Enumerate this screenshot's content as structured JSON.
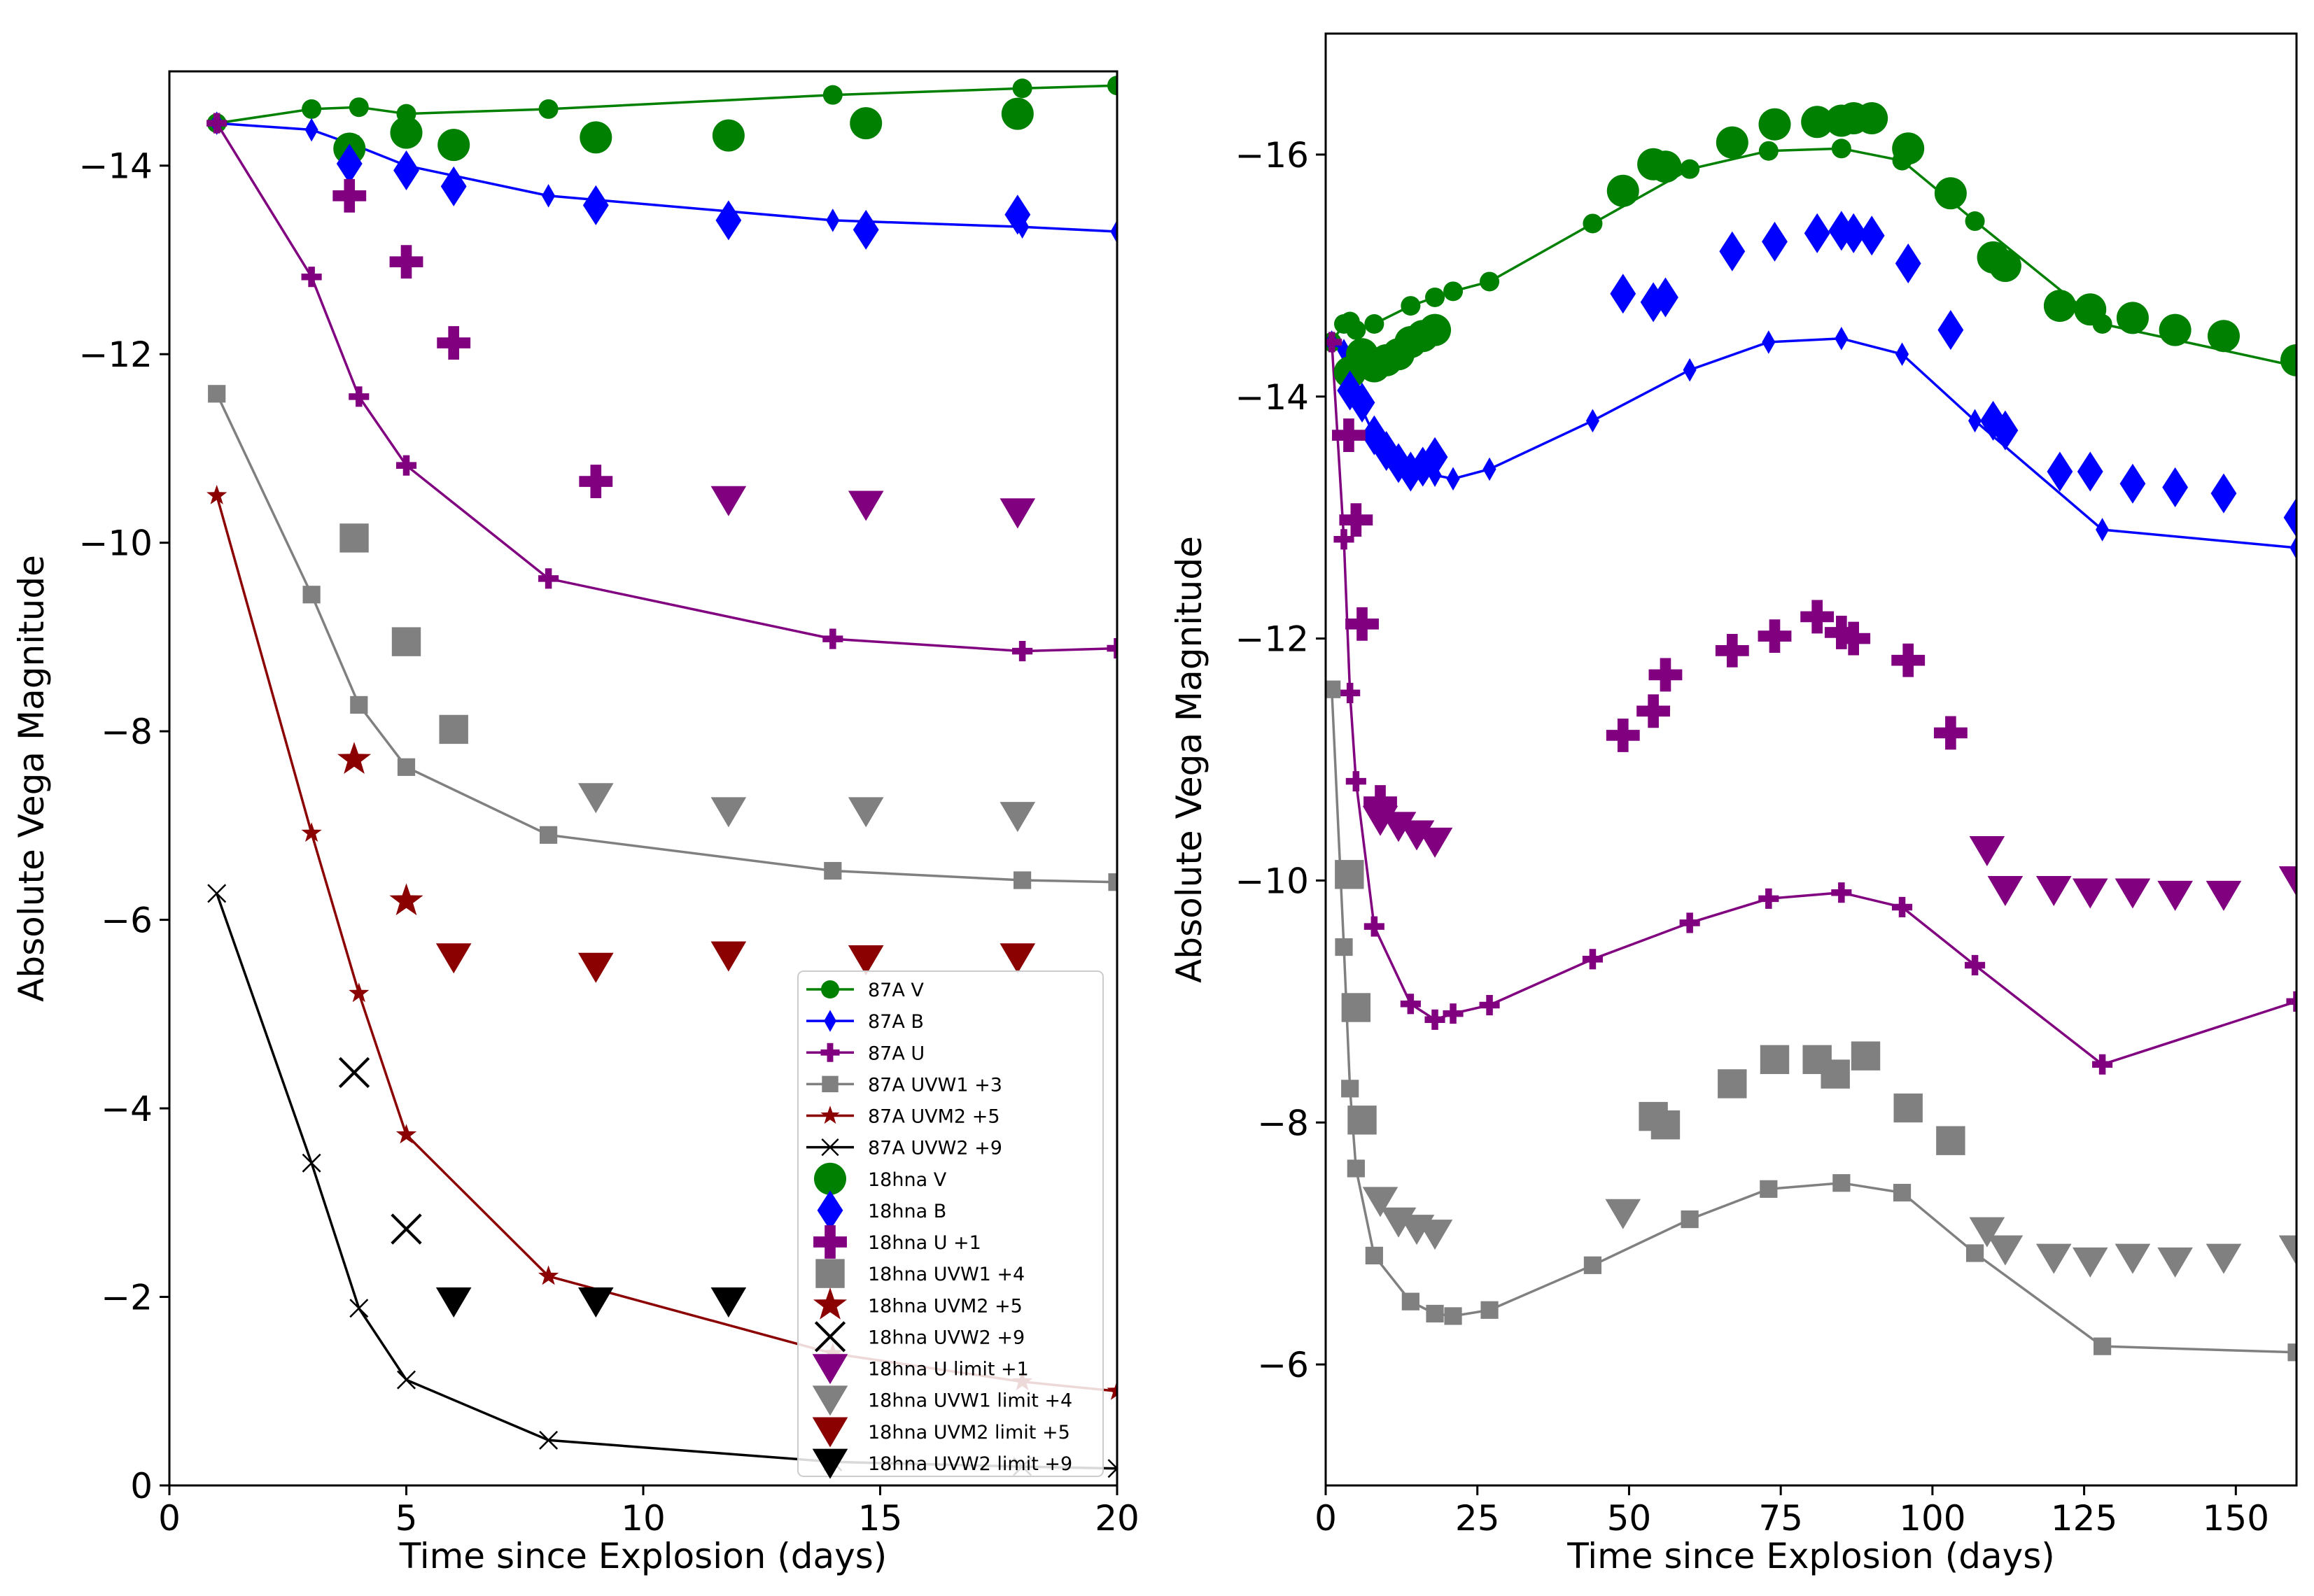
{
  "chart_data": [
    {
      "type": "line",
      "panel": "left",
      "xlabel": "Time since Explosion (days)",
      "ylabel": "Absolute Vega Magnitude",
      "xlim": [
        0,
        20
      ],
      "ylim": [
        0,
        -15
      ],
      "xticks": [
        0,
        5,
        10,
        15,
        20
      ],
      "yticks": [
        0,
        -2,
        -4,
        -6,
        -8,
        -10,
        -12,
        -14
      ],
      "xtick_labels": [
        "0",
        "5",
        "10",
        "15",
        "20"
      ],
      "ytick_labels": [
        "0",
        "−2",
        "−4",
        "−6",
        "−8",
        "−10",
        "−12",
        "−14"
      ],
      "legend_position": "lower-right",
      "lines": [
        {
          "name": "87A V",
          "color": "#008000",
          "marker": "circle",
          "x": [
            1,
            3,
            4,
            5,
            8,
            14,
            18,
            20
          ],
          "y": [
            -14.45,
            -14.6,
            -14.62,
            -14.55,
            -14.6,
            -14.75,
            -14.82,
            -14.85
          ]
        },
        {
          "name": "87A B",
          "color": "#0000ff",
          "marker": "thin-diamond",
          "x": [
            1,
            3,
            4,
            5,
            8,
            14,
            18,
            20
          ],
          "y": [
            -14.45,
            -14.38,
            -14.2,
            -14.0,
            -13.68,
            -13.42,
            -13.35,
            -13.3
          ]
        },
        {
          "name": "87A U",
          "color": "#800080",
          "marker": "plus",
          "x": [
            1,
            3,
            4,
            5,
            8,
            14,
            18,
            20
          ],
          "y": [
            -14.45,
            -12.82,
            -11.55,
            -10.82,
            -9.62,
            -8.98,
            -8.85,
            -8.88
          ]
        },
        {
          "name": "87A UVW1 +3",
          "color": "#808080",
          "marker": "square",
          "x": [
            1,
            3,
            4,
            5,
            8,
            14,
            18,
            20
          ],
          "y": [
            -11.58,
            -9.45,
            -8.28,
            -7.62,
            -6.9,
            -6.52,
            -6.42,
            -6.4
          ]
        },
        {
          "name": "87A UVM2 +5",
          "color": "#8b0000",
          "marker": "star",
          "x": [
            1,
            3,
            4,
            5,
            8,
            14,
            18,
            20
          ],
          "y": [
            -10.5,
            -6.92,
            -5.22,
            -3.72,
            -2.22,
            -1.4,
            -1.1,
            -1.0
          ]
        },
        {
          "name": "87A UVW2 +9",
          "color": "#000000",
          "marker": "x",
          "x": [
            1,
            3,
            4,
            5,
            8,
            14,
            18,
            20
          ],
          "y": [
            -6.28,
            -3.42,
            -1.88,
            -1.12,
            -0.48,
            -0.25,
            -0.2,
            -0.18
          ]
        }
      ],
      "points": [
        {
          "name": "18hna V",
          "color": "#008000",
          "marker": "circle",
          "x": [
            3.8,
            5,
            6,
            9,
            11.8,
            14.7,
            17.9
          ],
          "y": [
            -14.18,
            -14.35,
            -14.22,
            -14.3,
            -14.32,
            -14.45,
            -14.55
          ]
        },
        {
          "name": "18hna B",
          "color": "#0000ff",
          "marker": "diamond",
          "x": [
            3.8,
            5,
            6,
            9,
            11.8,
            14.7,
            17.9
          ],
          "y": [
            -14.02,
            -13.95,
            -13.78,
            -13.58,
            -13.42,
            -13.32,
            -13.48
          ]
        },
        {
          "name": "18hna U +1",
          "color": "#800080",
          "marker": "plus",
          "x": [
            3.8,
            5,
            6,
            9
          ],
          "y": [
            -13.68,
            -12.98,
            -12.12,
            -10.65
          ]
        },
        {
          "name": "18hna UVW1 +4",
          "color": "#808080",
          "marker": "square",
          "x": [
            3.9,
            5,
            6
          ],
          "y": [
            -10.05,
            -8.95,
            -8.02
          ]
        },
        {
          "name": "18hna UVM2 +5",
          "color": "#8b0000",
          "marker": "star",
          "x": [
            3.9,
            5
          ],
          "y": [
            -7.7,
            -6.2
          ]
        },
        {
          "name": "18hna UVW2 +9",
          "color": "#000000",
          "marker": "x",
          "x": [
            3.9,
            5
          ],
          "y": [
            -4.38,
            -2.72
          ]
        },
        {
          "name": "18hna U limit +1",
          "color": "#800080",
          "marker": "triangle-down",
          "x": [
            11.8,
            14.7,
            17.9
          ],
          "y": [
            -10.45,
            -10.4,
            -10.32
          ]
        },
        {
          "name": "18hna UVW1 limit +4",
          "color": "#808080",
          "marker": "triangle-down",
          "x": [
            9,
            11.8,
            14.7,
            17.9
          ],
          "y": [
            -7.3,
            -7.15,
            -7.15,
            -7.1
          ]
        },
        {
          "name": "18hna UVM2 limit +5",
          "color": "#8b0000",
          "marker": "triangle-down",
          "x": [
            6,
            9,
            11.8,
            14.7,
            17.9
          ],
          "y": [
            -5.6,
            -5.5,
            -5.62,
            -5.58,
            -5.6
          ]
        },
        {
          "name": "18hna UVW2 limit +9",
          "color": "#000000",
          "marker": "triangle-down",
          "x": [
            6,
            9,
            11.8
          ],
          "y": [
            -1.95,
            -1.95,
            -1.95
          ]
        }
      ]
    },
    {
      "type": "line",
      "panel": "right",
      "xlabel": "Time since Explosion (days)",
      "ylabel": "Absolute Vega Magnitude",
      "xlim": [
        0,
        160
      ],
      "ylim": [
        -5,
        -17
      ],
      "xticks": [
        0,
        25,
        50,
        75,
        100,
        125,
        150
      ],
      "yticks": [
        -6,
        -8,
        -10,
        -12,
        -14,
        -16
      ],
      "xtick_labels": [
        "0",
        "25",
        "50",
        "75",
        "100",
        "125",
        "150"
      ],
      "ytick_labels": [
        "−6",
        "−8",
        "−10",
        "−12",
        "−14",
        "−16"
      ],
      "lines": [
        {
          "name": "87A V",
          "color": "#008000",
          "marker": "circle",
          "x": [
            1,
            3,
            4,
            5,
            8,
            14,
            18,
            21,
            27,
            44,
            60,
            73,
            85,
            95,
            107,
            128,
            160
          ],
          "y": [
            -14.45,
            -14.6,
            -14.62,
            -14.55,
            -14.6,
            -14.75,
            -14.82,
            -14.87,
            -14.95,
            -15.43,
            -15.88,
            -16.03,
            -16.05,
            -15.95,
            -15.45,
            -14.6,
            -14.25
          ]
        },
        {
          "name": "87A B",
          "color": "#0000ff",
          "marker": "thin-diamond",
          "x": [
            1,
            3,
            4,
            5,
            8,
            14,
            18,
            21,
            27,
            44,
            60,
            73,
            85,
            95,
            107,
            128,
            160
          ],
          "y": [
            -14.45,
            -14.38,
            -14.2,
            -14.0,
            -13.68,
            -13.42,
            -13.35,
            -13.32,
            -13.4,
            -13.8,
            -14.22,
            -14.45,
            -14.48,
            -14.35,
            -13.8,
            -12.9,
            -12.75
          ]
        },
        {
          "name": "87A U",
          "color": "#800080",
          "marker": "plus",
          "x": [
            1,
            3,
            4,
            5,
            8,
            14,
            18,
            21,
            27,
            44,
            60,
            73,
            85,
            95,
            107,
            128,
            160
          ],
          "y": [
            -14.45,
            -12.82,
            -11.55,
            -10.82,
            -9.62,
            -8.98,
            -8.85,
            -8.9,
            -8.97,
            -9.35,
            -9.65,
            -9.85,
            -9.9,
            -9.78,
            -9.3,
            -8.48,
            -9.0
          ]
        },
        {
          "name": "87A UVW1 +3",
          "color": "#808080",
          "marker": "square",
          "x": [
            1,
            3,
            4,
            5,
            8,
            14,
            18,
            21,
            27,
            44,
            60,
            73,
            85,
            95,
            107,
            128,
            160
          ],
          "y": [
            -11.58,
            -9.45,
            -8.28,
            -7.62,
            -6.9,
            -6.52,
            -6.42,
            -6.4,
            -6.45,
            -6.82,
            -7.2,
            -7.45,
            -7.5,
            -7.42,
            -6.92,
            -6.15,
            -6.1
          ]
        }
      ],
      "points": [
        {
          "name": "18hna V",
          "color": "#008000",
          "marker": "circle",
          "x": [
            4,
            6,
            8,
            10,
            12,
            14,
            16,
            18,
            49,
            54,
            56,
            67,
            74,
            81,
            85,
            87,
            90,
            96,
            103,
            110,
            112,
            121,
            126,
            133,
            140,
            148,
            160
          ],
          "y": [
            -14.2,
            -14.35,
            -14.25,
            -14.3,
            -14.35,
            -14.45,
            -14.5,
            -14.55,
            -15.7,
            -15.92,
            -15.9,
            -16.1,
            -16.25,
            -16.27,
            -16.28,
            -16.3,
            -16.3,
            -16.05,
            -15.68,
            -15.15,
            -15.08,
            -14.75,
            -14.72,
            -14.65,
            -14.55,
            -14.5,
            -14.3
          ]
        },
        {
          "name": "18hna B",
          "color": "#0000ff",
          "marker": "diamond",
          "x": [
            4,
            6,
            8,
            10,
            12,
            14,
            16,
            18,
            49,
            54,
            56,
            67,
            74,
            81,
            85,
            87,
            90,
            96,
            103,
            110,
            112,
            121,
            126,
            133,
            140,
            148,
            160
          ],
          "y": [
            -14.05,
            -13.95,
            -13.68,
            -13.55,
            -13.45,
            -13.38,
            -13.42,
            -13.5,
            -14.85,
            -14.78,
            -14.82,
            -15.2,
            -15.28,
            -15.35,
            -15.37,
            -15.35,
            -15.33,
            -15.1,
            -14.55,
            -13.8,
            -13.72,
            -13.38,
            -13.38,
            -13.28,
            -13.25,
            -13.2,
            -13.0
          ]
        },
        {
          "name": "18hna U +1",
          "color": "#800080",
          "marker": "plus",
          "x": [
            3.8,
            5,
            6,
            9,
            49,
            54,
            56,
            67,
            74,
            81,
            85,
            87,
            96,
            103
          ],
          "y": [
            -13.68,
            -12.98,
            -12.12,
            -10.65,
            -11.2,
            -11.4,
            -11.7,
            -11.9,
            -12.02,
            -12.18,
            -12.05,
            -12.0,
            -11.82,
            -11.22
          ]
        },
        {
          "name": "18hna UVW1 +4",
          "color": "#808080",
          "marker": "square",
          "x": [
            3.9,
            5,
            6,
            54,
            56,
            67,
            74,
            81,
            84,
            89,
            96,
            103
          ],
          "y": [
            -10.05,
            -8.95,
            -8.02,
            -8.05,
            -7.98,
            -8.32,
            -8.52,
            -8.52,
            -8.4,
            -8.55,
            -8.12,
            -7.85
          ]
        },
        {
          "name": "18hna U limit +1",
          "color": "#800080",
          "marker": "triangle-down",
          "x": [
            9,
            12,
            15,
            18,
            109,
            112,
            120,
            126,
            133,
            140,
            148,
            160
          ],
          "y": [
            -10.5,
            -10.45,
            -10.38,
            -10.32,
            -10.25,
            -9.92,
            -9.92,
            -9.9,
            -9.9,
            -9.88,
            -9.88,
            -10.0
          ]
        },
        {
          "name": "18hna UVW1 limit +4",
          "color": "#808080",
          "marker": "triangle-down",
          "x": [
            9,
            12,
            15,
            18,
            49,
            109,
            112,
            120,
            126,
            133,
            140,
            148,
            160
          ],
          "y": [
            -7.35,
            -7.18,
            -7.12,
            -7.08,
            -7.25,
            -7.1,
            -6.95,
            -6.88,
            -6.85,
            -6.88,
            -6.85,
            -6.88,
            -6.95
          ]
        }
      ]
    }
  ]
}
